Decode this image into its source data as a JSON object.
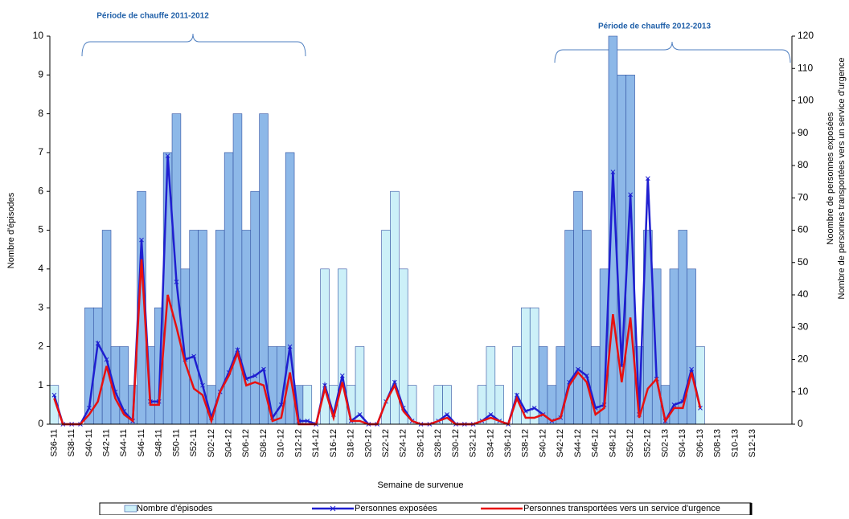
{
  "chart_data": {
    "type": "bar_line",
    "xlabel": "Semaine de survenue",
    "ylabel": "Nombre d'épisodes",
    "y2label": [
      "Noombre de personnes exposées",
      "Nombre de personnes transportées vers un service d'urgence"
    ],
    "annotations": [
      "Période de chauffe 2011-2012",
      "Période de chauffe 2012-2013"
    ],
    "categories": [
      "S36-11",
      null,
      "S38-11",
      null,
      "S40-11",
      null,
      "S42-11",
      null,
      "S44-11",
      null,
      "S46-11",
      null,
      "S48-11",
      null,
      "S50-11",
      null,
      "S52-11",
      null,
      "S02-12",
      null,
      "S04-12",
      null,
      "S06-12",
      null,
      "S08-12",
      null,
      "S10-12",
      null,
      "S12-12",
      null,
      "S14-12",
      null,
      "S16-12",
      null,
      "S18-12",
      null,
      "S20-12",
      null,
      "S22-12",
      null,
      "S24-12",
      null,
      "S26-12",
      null,
      "S28-12",
      null,
      "S30-12",
      null,
      "S32-12",
      null,
      "S34-12",
      null,
      "S36-12",
      null,
      "S38-12",
      null,
      "S40-12",
      null,
      "S42-12",
      null,
      "S44-12",
      null,
      "S46-12",
      null,
      "S48-12",
      null,
      "S50-12",
      null,
      "S52-12",
      null,
      "S02-13",
      null,
      "S04-13",
      null,
      "S06-13",
      null,
      "S08-13",
      null,
      "S10-13",
      null,
      "S12-13",
      null,
      null,
      null,
      null
    ],
    "series": [
      {
        "name": "Nombre d'épisodes",
        "type": "bar",
        "color": "#ccf0f8",
        "colors": [
          "#ccf0f8",
          "#ccf0f8",
          "#ccf0f8",
          "#ccf0f8",
          "#8db8e8",
          "#8db8e8",
          "#8db8e8",
          "#8db8e8",
          "#8db8e8",
          "#8db8e8",
          "#8db8e8",
          "#8db8e8",
          "#8db8e8",
          "#8db8e8",
          "#8db8e8",
          "#8db8e8",
          "#8db8e8",
          "#8db8e8",
          "#8db8e8",
          "#8db8e8",
          "#8db8e8",
          "#8db8e8",
          "#8db8e8",
          "#8db8e8",
          "#8db8e8",
          "#8db8e8",
          "#8db8e8",
          "#8db8e8",
          "#8db8e8",
          "#ccf0f8",
          "#ccf0f8",
          "#ccf0f8",
          "#ccf0f8",
          "#ccf0f8",
          "#ccf0f8",
          "#ccf0f8",
          "#ccf0f8",
          "#ccf0f8",
          "#ccf0f8",
          "#ccf0f8",
          "#ccf0f8",
          "#ccf0f8",
          "#ccf0f8",
          "#ccf0f8",
          "#ccf0f8",
          "#ccf0f8",
          "#ccf0f8",
          "#ccf0f8",
          "#ccf0f8",
          "#ccf0f8",
          "#ccf0f8",
          "#ccf0f8",
          "#ccf0f8",
          "#ccf0f8",
          "#ccf0f8",
          "#ccf0f8",
          "#8db8e8",
          "#8db8e8",
          "#8db8e8",
          "#8db8e8",
          "#8db8e8",
          "#8db8e8",
          "#8db8e8",
          "#8db8e8",
          "#8db8e8",
          "#8db8e8",
          "#8db8e8",
          "#8db8e8",
          "#8db8e8",
          "#8db8e8",
          "#8db8e8",
          "#8db8e8",
          "#8db8e8",
          "#8db8e8",
          "#ccf0f8",
          "#ccf0f8",
          "#ccf0f8",
          "#ccf0f8",
          "#ccf0f8",
          "#ccf0f8",
          "#ccf0f8",
          "#ccf0f8",
          "#ccf0f8",
          "#ccf0f8",
          "#ccf0f8"
        ],
        "values": [
          1,
          0,
          0,
          0,
          3,
          3,
          5,
          2,
          2,
          1,
          6,
          2,
          3,
          7,
          8,
          4,
          5,
          5,
          1,
          5,
          7,
          8,
          5,
          6,
          8,
          2,
          2,
          7,
          1,
          1,
          0,
          4,
          1,
          4,
          1,
          2,
          0,
          0,
          5,
          6,
          4,
          1,
          0,
          0,
          1,
          1,
          0,
          0,
          0,
          1,
          2,
          1,
          0,
          2,
          3,
          3,
          2,
          1,
          2,
          5,
          6,
          5,
          2,
          4,
          10,
          9,
          9,
          2,
          5,
          4,
          1,
          4,
          5,
          4,
          2,
          0,
          0,
          0,
          0,
          0,
          0,
          0,
          0,
          0,
          0
        ]
      },
      {
        "name": "Personnes exposées",
        "type": "line",
        "axis": "y2",
        "color": "#1f1fd0",
        "values": [
          9,
          0,
          0,
          0,
          5,
          25,
          20,
          10,
          4,
          1,
          57,
          7,
          7,
          83,
          44,
          20,
          21,
          12,
          2,
          10,
          16,
          23,
          14,
          15,
          17,
          2,
          6,
          24,
          1,
          1,
          0,
          12,
          3,
          15,
          1,
          3,
          0,
          0,
          7,
          13,
          5,
          1,
          0,
          0,
          1,
          3,
          0,
          0,
          0,
          1,
          3,
          1,
          0,
          9,
          4,
          5,
          3,
          1,
          2,
          13,
          17,
          15,
          5,
          6,
          78,
          18,
          71,
          3,
          76,
          14,
          1,
          6,
          7,
          17,
          5,
          null,
          null,
          null,
          null,
          null,
          null,
          null,
          null,
          null,
          null
        ]
      },
      {
        "name": "Personnes transportées vers un service d'urgence",
        "type": "line",
        "axis": "y2",
        "color": "#e81010",
        "values": [
          8,
          0,
          0,
          0,
          3,
          7,
          18,
          8,
          3,
          1,
          51,
          6,
          6,
          40,
          30,
          19,
          11,
          9,
          1,
          10,
          15,
          22,
          12,
          13,
          12,
          1,
          2,
          16,
          0,
          0,
          0,
          11,
          2,
          13,
          1,
          1,
          0,
          0,
          7,
          12,
          4,
          1,
          0,
          0,
          1,
          2,
          0,
          0,
          0,
          1,
          2,
          1,
          0,
          8,
          2,
          2,
          3,
          1,
          2,
          12,
          16,
          13,
          3,
          5,
          34,
          13,
          33,
          2,
          11,
          14,
          1,
          5,
          5,
          16,
          5,
          null,
          null,
          null,
          null,
          null,
          null,
          null,
          null,
          null,
          null
        ]
      }
    ],
    "ylim": [
      0,
      10
    ],
    "yticks": [
      0,
      1,
      2,
      3,
      4,
      5,
      6,
      7,
      8,
      9,
      10
    ],
    "y2lim": [
      0,
      120
    ],
    "y2ticks": [
      0,
      10,
      20,
      30,
      40,
      50,
      60,
      70,
      80,
      90,
      100,
      110,
      120
    ]
  }
}
